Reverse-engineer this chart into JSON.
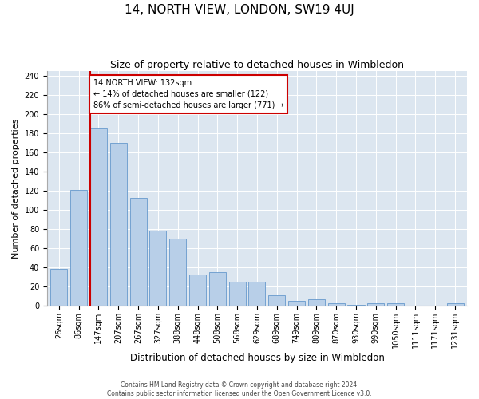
{
  "title": "14, NORTH VIEW, LONDON, SW19 4UJ",
  "subtitle": "Size of property relative to detached houses in Wimbledon",
  "xlabel": "Distribution of detached houses by size in Wimbledon",
  "ylabel": "Number of detached properties",
  "categories": [
    "26sqm",
    "86sqm",
    "147sqm",
    "207sqm",
    "267sqm",
    "327sqm",
    "388sqm",
    "448sqm",
    "508sqm",
    "568sqm",
    "629sqm",
    "689sqm",
    "749sqm",
    "809sqm",
    "870sqm",
    "930sqm",
    "990sqm",
    "1050sqm",
    "1111sqm",
    "1171sqm",
    "1231sqm"
  ],
  "values": [
    39,
    121,
    185,
    170,
    113,
    79,
    70,
    33,
    35,
    25,
    25,
    11,
    5,
    7,
    3,
    1,
    3,
    3,
    0,
    0,
    3
  ],
  "bar_color": "#b8cfe8",
  "bar_edge_color": "#6699cc",
  "vline_color": "#cc0000",
  "vline_x_index": 2,
  "annotation_text": "14 NORTH VIEW: 132sqm\n← 14% of detached houses are smaller (122)\n86% of semi-detached houses are larger (771) →",
  "annotation_box_color": "#ffffff",
  "annotation_box_edge_color": "#cc0000",
  "ylim": [
    0,
    245
  ],
  "yticks": [
    0,
    20,
    40,
    60,
    80,
    100,
    120,
    140,
    160,
    180,
    200,
    220,
    240
  ],
  "background_color": "#dce6f0",
  "footer_line1": "Contains HM Land Registry data © Crown copyright and database right 2024.",
  "footer_line2": "Contains public sector information licensed under the Open Government Licence v3.0.",
  "title_fontsize": 11,
  "subtitle_fontsize": 9,
  "xlabel_fontsize": 8.5,
  "ylabel_fontsize": 8,
  "tick_fontsize": 7,
  "annotation_fontsize": 7,
  "footer_fontsize": 5.5
}
